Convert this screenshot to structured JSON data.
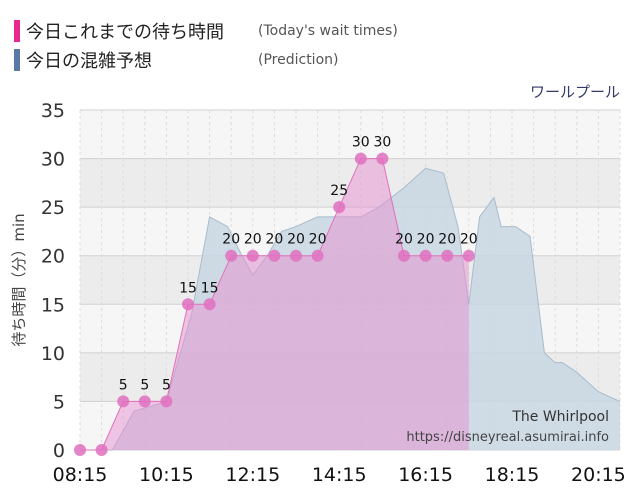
{
  "legend": {
    "actual_label": "今日これまでの待ち時間",
    "actual_note": "(Today's wait times)",
    "actual_color": "#e8288f",
    "predicted_label": "今日の混雑予想",
    "predicted_note": "(Prediction)",
    "predicted_color": "#5a78a8"
  },
  "chart_data": {
    "type": "area",
    "title": "ワールプール",
    "ylabel": "待ち時間（分）min",
    "xlabel": "",
    "ylim": [
      0,
      35
    ],
    "yticks": [
      0,
      5,
      10,
      15,
      20,
      25,
      30,
      35
    ],
    "xlim": [
      "08:15",
      "20:45"
    ],
    "xticks": [
      "08:15",
      "10:15",
      "12:15",
      "14:15",
      "16:15",
      "18:15",
      "20:15"
    ],
    "grid": true,
    "watermark": [
      "The Whirlpool",
      "https://disneyreal.asumirai.info"
    ],
    "series": [
      {
        "key": "actual",
        "type": "area",
        "color": "#e060b0",
        "x": [
          "08:15",
          "08:45",
          "09:15",
          "09:45",
          "10:15",
          "10:45",
          "11:15",
          "11:45",
          "12:15",
          "12:45",
          "13:15",
          "13:45",
          "14:15",
          "14:45",
          "15:15",
          "15:45",
          "16:15",
          "16:45",
          "17:15"
        ],
        "y": [
          0,
          0,
          5,
          5,
          5,
          15,
          15,
          20,
          20,
          20,
          20,
          20,
          25,
          30,
          30,
          20,
          20,
          20,
          20
        ],
        "labels": [
          "",
          "",
          "5",
          "5",
          "5",
          "15",
          "15",
          "20",
          "20",
          "20",
          "20",
          "20",
          "25",
          "30",
          "30",
          "20",
          "20",
          "20",
          "20"
        ]
      },
      {
        "key": "predicted",
        "type": "area",
        "color": "#8fa8c0",
        "x": [
          "08:15",
          "09:00",
          "09:30",
          "10:15",
          "10:50",
          "11:15",
          "11:40",
          "12:00",
          "12:15",
          "12:35",
          "12:55",
          "13:15",
          "13:45",
          "14:15",
          "14:45",
          "15:10",
          "15:45",
          "16:15",
          "16:40",
          "17:00",
          "17:15",
          "17:30",
          "17:50",
          "18:00",
          "18:20",
          "18:40",
          "19:00",
          "19:15",
          "19:25",
          "19:45",
          "20:15",
          "20:45"
        ],
        "y": [
          0,
          0,
          4,
          5,
          14,
          24,
          23,
          20,
          18,
          20,
          22.5,
          23,
          24,
          24,
          24,
          25,
          27,
          29,
          28.5,
          23,
          15,
          24,
          26,
          23,
          23,
          22,
          10,
          9,
          9,
          8,
          6,
          5
        ]
      }
    ]
  }
}
